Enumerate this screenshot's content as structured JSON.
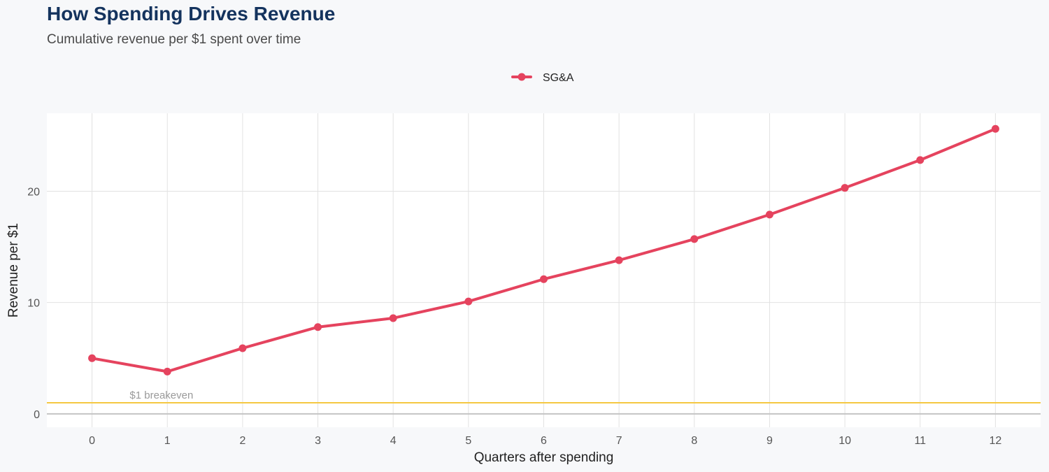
{
  "title": "How Spending Drives Revenue",
  "subtitle": "Cumulative revenue per $1 spent over time",
  "colors": {
    "series": "#e5435e",
    "reference": "#f5c842",
    "grid": "#e2e2e2",
    "zero_line": "#c4c4c4",
    "panel": "#ffffff",
    "background": "#f7f8fa"
  },
  "chart_data": {
    "type": "line",
    "title": "How Spending Drives Revenue",
    "subtitle": "Cumulative revenue per $1 spent over time",
    "xlabel": "Quarters after spending",
    "ylabel": "Revenue per $1",
    "x": [
      0,
      1,
      2,
      3,
      4,
      5,
      6,
      7,
      8,
      9,
      10,
      11,
      12
    ],
    "series": [
      {
        "name": "SG&A",
        "values": [
          5.0,
          3.8,
          5.9,
          7.8,
          8.6,
          10.1,
          12.1,
          13.8,
          15.7,
          17.9,
          20.3,
          22.8,
          25.6
        ]
      }
    ],
    "xlim": [
      -0.6,
      12.6
    ],
    "ylim": [
      -1.2,
      27
    ]
  },
  "x_ticks": [
    "0",
    "1",
    "2",
    "3",
    "4",
    "5",
    "6",
    "7",
    "8",
    "9",
    "10",
    "11",
    "12"
  ],
  "y_ticks": [
    "0",
    "10",
    "20"
  ],
  "reference_line": {
    "value": 1,
    "label": "$1 breakeven"
  },
  "legend": {
    "position": "top",
    "label": "SG&A"
  },
  "grid": true
}
